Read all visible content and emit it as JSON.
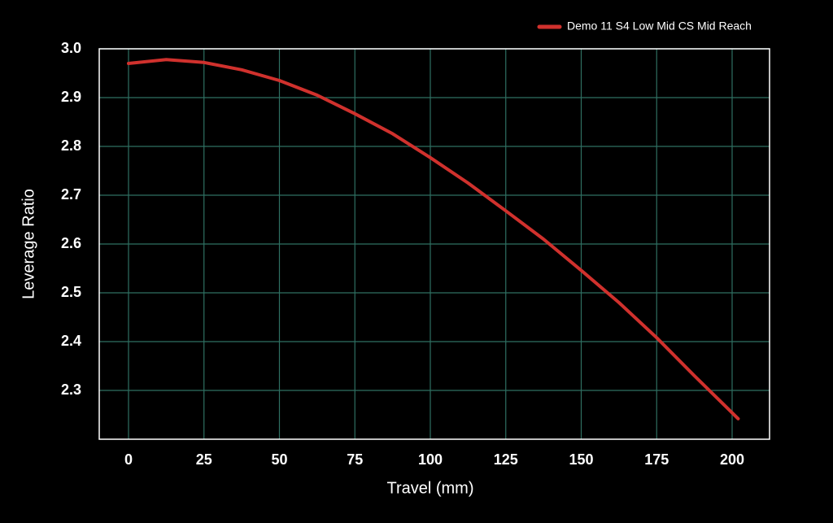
{
  "chart_data": {
    "type": "line",
    "xlabel": "Travel (mm)",
    "ylabel": "Leverage Ratio",
    "x": [
      0,
      12.5,
      25,
      37.5,
      50,
      62.5,
      75,
      87.5,
      100,
      112.5,
      125,
      137.5,
      150,
      162.5,
      175,
      187.5,
      202
    ],
    "series": [
      {
        "name": "Demo 11 S4 Low Mid CS Mid Reach",
        "color": "#d0312d",
        "values": [
          2.97,
          2.978,
          2.972,
          2.957,
          2.935,
          2.905,
          2.867,
          2.826,
          2.777,
          2.725,
          2.668,
          2.61,
          2.546,
          2.48,
          2.408,
          2.33,
          2.242
        ]
      }
    ],
    "xlim": [
      -9.7,
      212.4
    ],
    "xticks": [
      0,
      25,
      50,
      75,
      100,
      125,
      150,
      175,
      200
    ],
    "ylim": [
      2.2,
      3.0
    ],
    "yticks": [
      {
        "value": 3,
        "label": "3.0"
      },
      2.9,
      2.8,
      2.7,
      2.6,
      2.5,
      2.4,
      2.3
    ],
    "grid": true,
    "legend": "top-right"
  }
}
